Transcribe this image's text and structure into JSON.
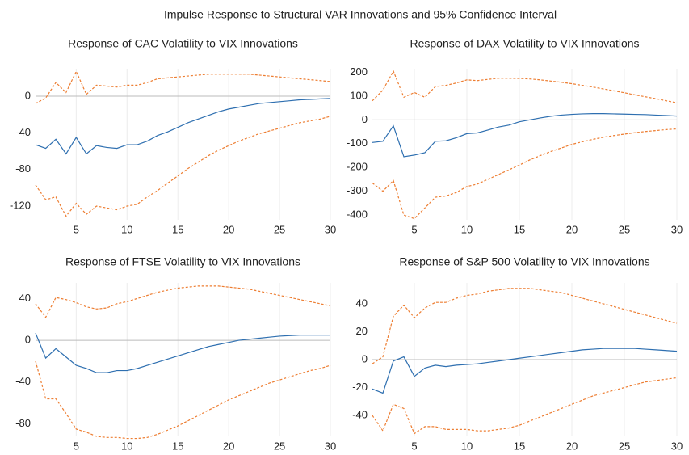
{
  "title": "Impulse Response to Structural VAR Innovations and  95% Confidence Interval",
  "chart_data": [
    {
      "type": "line",
      "title": "Response of CAC Volatility to VIX Innovations",
      "x": [
        1,
        2,
        3,
        4,
        5,
        6,
        7,
        8,
        9,
        10,
        11,
        12,
        13,
        14,
        15,
        16,
        17,
        18,
        19,
        20,
        21,
        22,
        23,
        24,
        25,
        26,
        27,
        28,
        29,
        30
      ],
      "xlim": [
        1,
        30
      ],
      "xticks": [
        5,
        10,
        15,
        20,
        25,
        30
      ],
      "ylim": [
        -135,
        30
      ],
      "yticks": [
        -120,
        -80,
        -40,
        0
      ],
      "grid": true,
      "series": [
        {
          "color": "#2e6fb0",
          "dashed": false,
          "values": [
            -53,
            -57,
            -47,
            -63,
            -45,
            -63,
            -54,
            -56,
            -57,
            -53,
            -53,
            -49,
            -43,
            -39,
            -34,
            -29,
            -25,
            -21,
            -17,
            -14,
            -12,
            -10,
            -8,
            -7,
            -6,
            -5,
            -4,
            -3.5,
            -3,
            -2.5
          ]
        },
        {
          "color": "#ed7d31",
          "dashed": true,
          "values": [
            -8,
            -2,
            15,
            4,
            27,
            2,
            12,
            11,
            10,
            12,
            12,
            15,
            19,
            20,
            21,
            22,
            23,
            24,
            24,
            24,
            24,
            24,
            23,
            22,
            21,
            20,
            19,
            18,
            17,
            16
          ]
        },
        {
          "color": "#ed7d31",
          "dashed": true,
          "values": [
            -97,
            -113,
            -110,
            -131,
            -117,
            -129,
            -120,
            -122,
            -124,
            -120,
            -118,
            -110,
            -103,
            -95,
            -87,
            -79,
            -72,
            -65,
            -59,
            -54,
            -49,
            -45,
            -41,
            -38,
            -35,
            -32,
            -29,
            -27,
            -25,
            -22
          ]
        }
      ]
    },
    {
      "type": "line",
      "title": "Response of  DAX Volatility to VIX Innovations",
      "x": [
        1,
        2,
        3,
        4,
        5,
        6,
        7,
        8,
        9,
        10,
        11,
        12,
        13,
        14,
        15,
        16,
        17,
        18,
        19,
        20,
        21,
        22,
        23,
        24,
        25,
        26,
        27,
        28,
        29,
        30
      ],
      "xlim": [
        1,
        30
      ],
      "xticks": [
        5,
        10,
        15,
        20,
        25,
        30
      ],
      "ylim": [
        -420,
        215
      ],
      "yticks": [
        -400,
        -300,
        -200,
        -100,
        0,
        100,
        200
      ],
      "grid": true,
      "series": [
        {
          "color": "#2e6fb0",
          "dashed": false,
          "values": [
            -95,
            -90,
            -25,
            -155,
            -148,
            -138,
            -90,
            -88,
            -75,
            -58,
            -55,
            -43,
            -30,
            -22,
            -8,
            0,
            8,
            15,
            20,
            23,
            25,
            26,
            26,
            25,
            24,
            23,
            22,
            20,
            18,
            16
          ]
        },
        {
          "color": "#ed7d31",
          "dashed": true,
          "values": [
            80,
            125,
            205,
            95,
            115,
            95,
            140,
            145,
            155,
            168,
            165,
            170,
            175,
            175,
            174,
            172,
            168,
            163,
            158,
            152,
            145,
            138,
            130,
            122,
            114,
            105,
            97,
            89,
            80,
            72
          ]
        },
        {
          "color": "#ed7d31",
          "dashed": true,
          "values": [
            -265,
            -300,
            -255,
            -400,
            -415,
            -370,
            -325,
            -320,
            -305,
            -280,
            -270,
            -250,
            -230,
            -210,
            -190,
            -168,
            -150,
            -133,
            -118,
            -103,
            -92,
            -82,
            -73,
            -66,
            -60,
            -54,
            -49,
            -45,
            -41,
            -38
          ]
        }
      ]
    },
    {
      "type": "line",
      "title": "Response of  FTSE Volatility to VIX Innovations",
      "x": [
        1,
        2,
        3,
        4,
        5,
        6,
        7,
        8,
        9,
        10,
        11,
        12,
        13,
        14,
        15,
        16,
        17,
        18,
        19,
        20,
        21,
        22,
        23,
        24,
        25,
        26,
        27,
        28,
        29,
        30
      ],
      "xlim": [
        1,
        30
      ],
      "xticks": [
        5,
        10,
        15,
        20,
        25,
        30
      ],
      "ylim": [
        -92,
        55
      ],
      "yticks": [
        -80,
        -40,
        0,
        40
      ],
      "grid": true,
      "series": [
        {
          "color": "#2e6fb0",
          "dashed": false,
          "values": [
            7,
            -17,
            -8,
            -16,
            -24,
            -27,
            -31,
            -31,
            -29,
            -29,
            -27,
            -24,
            -21,
            -18,
            -15,
            -12,
            -9,
            -6,
            -4,
            -2,
            0,
            1,
            2,
            3,
            4,
            4.5,
            5,
            5,
            5,
            5
          ]
        },
        {
          "color": "#ed7d31",
          "dashed": true,
          "values": [
            35,
            22,
            41,
            39,
            36,
            32,
            30,
            31,
            35,
            37,
            40,
            43,
            46,
            48,
            50,
            51,
            52,
            52,
            52,
            51,
            50,
            49,
            47,
            45,
            43,
            41,
            39,
            37,
            35,
            33
          ]
        },
        {
          "color": "#ed7d31",
          "dashed": true,
          "values": [
            -20,
            -56,
            -56,
            -70,
            -85,
            -88,
            -92,
            -93,
            -93,
            -94,
            -94,
            -93,
            -90,
            -86,
            -82,
            -77,
            -72,
            -67,
            -62,
            -57,
            -53,
            -49,
            -45,
            -41,
            -38,
            -35,
            -32,
            -29,
            -27,
            -24
          ]
        }
      ]
    },
    {
      "type": "line",
      "title": "Response of S&P 500 Volatility to VIX Innovations",
      "x": [
        1,
        2,
        3,
        4,
        5,
        6,
        7,
        8,
        9,
        10,
        11,
        12,
        13,
        14,
        15,
        16,
        17,
        18,
        19,
        20,
        21,
        22,
        23,
        24,
        25,
        26,
        27,
        28,
        29,
        30
      ],
      "xlim": [
        1,
        30
      ],
      "xticks": [
        5,
        10,
        15,
        20,
        25,
        30
      ],
      "ylim": [
        -55,
        55
      ],
      "yticks": [
        -40,
        -20,
        0,
        20,
        40
      ],
      "grid": true,
      "series": [
        {
          "color": "#2e6fb0",
          "dashed": false,
          "values": [
            -21,
            -24,
            -1,
            2,
            -12,
            -6,
            -4,
            -5,
            -4,
            -3.5,
            -3,
            -2,
            -1,
            0,
            1,
            2,
            3,
            4,
            5,
            6,
            7,
            7.5,
            8,
            8,
            8,
            8,
            7.5,
            7,
            6.5,
            6
          ]
        },
        {
          "color": "#ed7d31",
          "dashed": true,
          "values": [
            -3,
            2,
            31,
            39,
            30,
            37,
            41,
            41,
            44,
            46,
            47,
            49,
            50,
            51,
            51,
            51,
            50,
            49,
            48,
            46,
            44,
            42,
            40,
            38,
            36,
            34,
            32,
            30,
            28,
            26
          ]
        },
        {
          "color": "#ed7d31",
          "dashed": true,
          "values": [
            -40,
            -51,
            -32,
            -35,
            -53,
            -48,
            -48,
            -50,
            -50,
            -50,
            -51,
            -51,
            -50,
            -49,
            -47,
            -44,
            -41,
            -38,
            -35,
            -32,
            -29,
            -26,
            -24,
            -22,
            -20,
            -18,
            -16,
            -15,
            -14,
            -13
          ]
        }
      ]
    }
  ]
}
